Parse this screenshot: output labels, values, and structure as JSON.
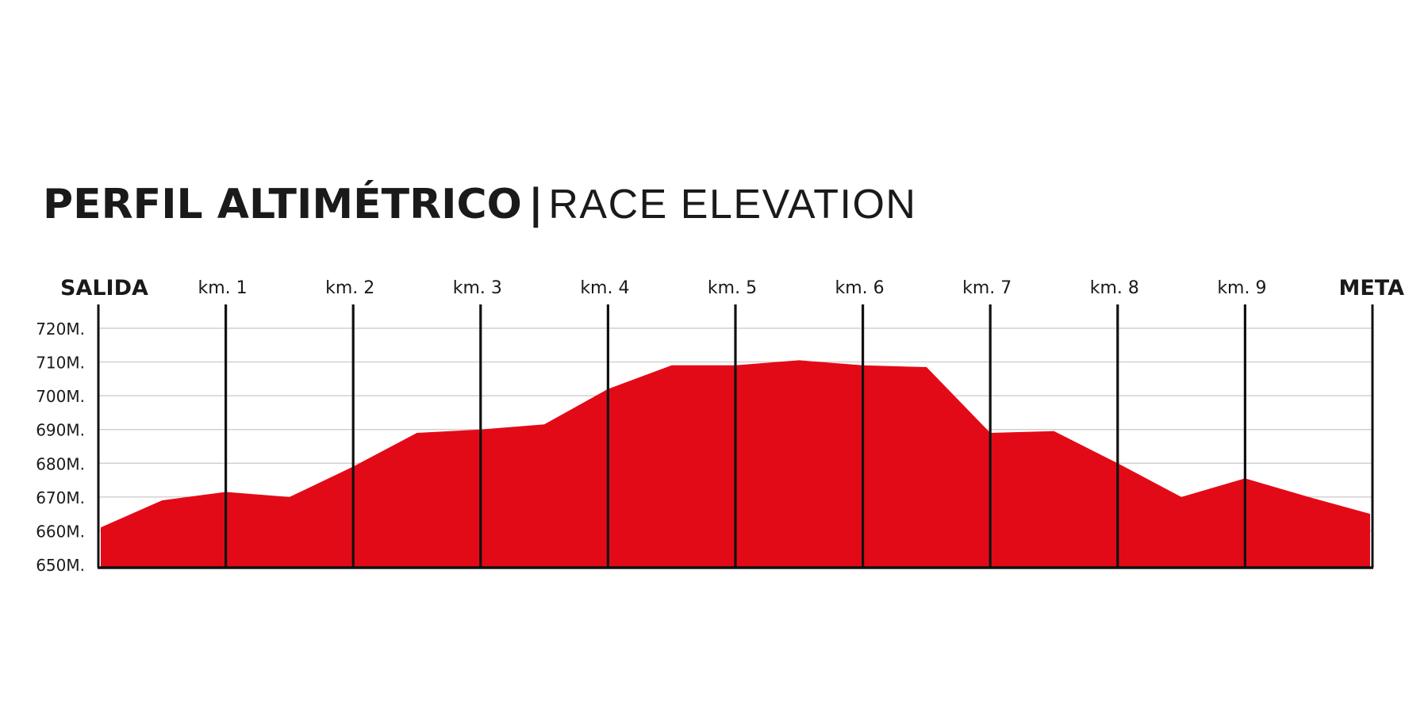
{
  "title": {
    "bold": "PERFIL ALTIMÉTRICO",
    "separator": "|",
    "light": "RACE ELEVATION"
  },
  "chart_data": {
    "type": "area",
    "title": "PERFIL ALTIMÉTRICO | RACE ELEVATION",
    "xlabel": "",
    "ylabel": "",
    "xlim": [
      0,
      10
    ],
    "ylim": [
      650,
      720
    ],
    "grid": true,
    "y_ticks": [
      650,
      660,
      670,
      680,
      690,
      700,
      710,
      720
    ],
    "y_tick_labels": [
      "650M.",
      "660M.",
      "670M.",
      "680M.",
      "690M.",
      "700M.",
      "710M.",
      "720M."
    ],
    "x_markers": [
      {
        "km": 0,
        "label": "SALIDA"
      },
      {
        "km": 1,
        "label": "km. 1"
      },
      {
        "km": 2,
        "label": "km. 2"
      },
      {
        "km": 3,
        "label": "km. 3"
      },
      {
        "km": 4,
        "label": "km. 4"
      },
      {
        "km": 5,
        "label": "km. 5"
      },
      {
        "km": 6,
        "label": "km. 6"
      },
      {
        "km": 7,
        "label": "km. 7"
      },
      {
        "km": 8,
        "label": "km. 8"
      },
      {
        "km": 9,
        "label": "km. 9"
      },
      {
        "km": 10,
        "label": "META"
      }
    ],
    "series": [
      {
        "color": "#e30a17",
        "x": [
          0,
          0.5,
          1,
          1.5,
          2,
          2.5,
          3,
          3.5,
          4,
          4.5,
          5,
          5.5,
          6,
          6.5,
          7,
          7.5,
          8,
          8.5,
          9,
          9.5,
          10
        ],
        "y": [
          661,
          669,
          671.5,
          670,
          679,
          689,
          690,
          691.5,
          702,
          709,
          709,
          710.5,
          709,
          708.5,
          689,
          689.5,
          680,
          670,
          675.5,
          670,
          665
        ]
      }
    ]
  }
}
